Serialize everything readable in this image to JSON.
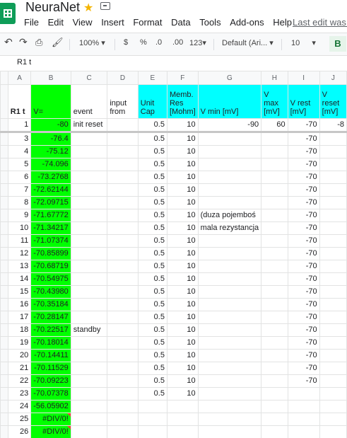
{
  "app": {
    "title": "NeuraNet",
    "last_edit": "Last edit was o",
    "menu": [
      "File",
      "Edit",
      "View",
      "Insert",
      "Format",
      "Data",
      "Tools",
      "Add-ons",
      "Help"
    ]
  },
  "toolbar": {
    "zoom": "100%",
    "currency": "$",
    "percent": "%",
    "decrease_decimals": ".0",
    "increase_decimals": ".00",
    "more_formats": "123",
    "font": "Default (Ari...",
    "font_size": "10",
    "bold": "B"
  },
  "formula_bar": {
    "content": "R1 t"
  },
  "columns": [
    "A",
    "B",
    "C",
    "D",
    "E",
    "F",
    "G",
    "H",
    "I",
    "J"
  ],
  "header_row": {
    "number": "",
    "cells": [
      "R1 t",
      "V=",
      "event",
      "input from",
      "Unit Cap",
      "Memb. Res [Mohm]",
      "V min [mV]",
      "V max [mV]",
      "V rest [mV]",
      "V reset [mV]"
    ]
  },
  "rows": [
    {
      "num": "",
      "a": "1",
      "b": "-80",
      "c": "init reset",
      "d": "",
      "e": "0.5",
      "f": "10",
      "g": "-90",
      "h": "60",
      "i": "-70",
      "j": "-8"
    },
    {
      "num": "",
      "a": "3",
      "b": "-76.4",
      "c": "",
      "d": "",
      "e": "0.5",
      "f": "10",
      "g": "",
      "h": "",
      "i": "-70",
      "j": ""
    },
    {
      "num": "",
      "a": "4",
      "b": "-75.12",
      "c": "",
      "d": "",
      "e": "0.5",
      "f": "10",
      "g": "",
      "h": "",
      "i": "-70",
      "j": ""
    },
    {
      "num": "",
      "a": "5",
      "b": "-74.096",
      "c": "",
      "d": "",
      "e": "0.5",
      "f": "10",
      "g": "",
      "h": "",
      "i": "-70",
      "j": ""
    },
    {
      "num": "",
      "a": "6",
      "b": "-73.2768",
      "c": "",
      "d": "",
      "e": "0.5",
      "f": "10",
      "g": "",
      "h": "",
      "i": "-70",
      "j": ""
    },
    {
      "num": "",
      "a": "7",
      "b": "-72.62144",
      "c": "",
      "d": "",
      "e": "0.5",
      "f": "10",
      "g": "",
      "h": "",
      "i": "-70",
      "j": ""
    },
    {
      "num": "",
      "a": "8",
      "b": "-72.09715",
      "c": "",
      "d": "",
      "e": "0.5",
      "f": "10",
      "g": "",
      "h": "",
      "i": "-70",
      "j": ""
    },
    {
      "num": "",
      "a": "9",
      "b": "-71.67772",
      "c": "",
      "d": "",
      "e": "0.5",
      "f": "10",
      "g": "(duza pojemboś",
      "h": "",
      "i": "-70",
      "j": ""
    },
    {
      "num": "",
      "a": "10",
      "b": "-71.34217",
      "c": "",
      "d": "",
      "e": "0.5",
      "f": "10",
      "g": "mala rezystancja",
      "h": "",
      "i": "-70",
      "j": ""
    },
    {
      "num": "",
      "a": "11",
      "b": "-71.07374",
      "c": "",
      "d": "",
      "e": "0.5",
      "f": "10",
      "g": "",
      "h": "",
      "i": "-70",
      "j": ""
    },
    {
      "num": "",
      "a": "12",
      "b": "-70.85899",
      "c": "",
      "d": "",
      "e": "0.5",
      "f": "10",
      "g": "",
      "h": "",
      "i": "-70",
      "j": ""
    },
    {
      "num": "",
      "a": "13",
      "b": "-70.68719",
      "c": "",
      "d": "",
      "e": "0.5",
      "f": "10",
      "g": "",
      "h": "",
      "i": "-70",
      "j": ""
    },
    {
      "num": "",
      "a": "14",
      "b": "-70.54975",
      "c": "",
      "d": "",
      "e": "0.5",
      "f": "10",
      "g": "",
      "h": "",
      "i": "-70",
      "j": ""
    },
    {
      "num": "",
      "a": "15",
      "b": "-70.43980",
      "c": "",
      "d": "",
      "e": "0.5",
      "f": "10",
      "g": "",
      "h": "",
      "i": "-70",
      "j": ""
    },
    {
      "num": "",
      "a": "16",
      "b": "-70.35184",
      "c": "",
      "d": "",
      "e": "0.5",
      "f": "10",
      "g": "",
      "h": "",
      "i": "-70",
      "j": ""
    },
    {
      "num": "",
      "a": "17",
      "b": "-70.28147",
      "c": "",
      "d": "",
      "e": "0.5",
      "f": "10",
      "g": "",
      "h": "",
      "i": "-70",
      "j": ""
    },
    {
      "num": "",
      "a": "18",
      "b": "-70.22517",
      "c": "standby",
      "d": "",
      "e": "0.5",
      "f": "10",
      "g": "",
      "h": "",
      "i": "-70",
      "j": ""
    },
    {
      "num": "",
      "a": "19",
      "b": "-70.18014",
      "c": "",
      "d": "",
      "e": "0.5",
      "f": "10",
      "g": "",
      "h": "",
      "i": "-70",
      "j": ""
    },
    {
      "num": "",
      "a": "20",
      "b": "-70.14411",
      "c": "",
      "d": "",
      "e": "0.5",
      "f": "10",
      "g": "",
      "h": "",
      "i": "-70",
      "j": ""
    },
    {
      "num": "",
      "a": "21",
      "b": "-70.11529",
      "c": "",
      "d": "",
      "e": "0.5",
      "f": "10",
      "g": "",
      "h": "",
      "i": "-70",
      "j": ""
    },
    {
      "num": "",
      "a": "22",
      "b": "-70.09223",
      "c": "",
      "d": "",
      "e": "0.5",
      "f": "10",
      "g": "",
      "h": "",
      "i": "-70",
      "j": ""
    },
    {
      "num": "",
      "a": "23",
      "b": "-70.07378",
      "c": "",
      "d": "",
      "e": "0.5",
      "f": "10",
      "g": "",
      "h": "",
      "i": "",
      "j": ""
    },
    {
      "num": "",
      "a": "24",
      "b": "-56.05902",
      "c": "",
      "d": "",
      "e": "",
      "f": "",
      "g": "",
      "h": "",
      "i": "",
      "j": ""
    },
    {
      "num": "",
      "a": "25",
      "b": "#DIV/0!",
      "c": "",
      "d": "",
      "e": "",
      "f": "",
      "g": "",
      "h": "",
      "i": "",
      "j": ""
    },
    {
      "num": "",
      "a": "26",
      "b": "#DIV/0!",
      "c": "",
      "d": "",
      "e": "",
      "f": "",
      "g": "",
      "h": "",
      "i": "",
      "j": ""
    }
  ]
}
